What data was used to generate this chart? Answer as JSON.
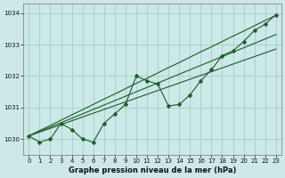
{
  "xlabel": "Graphe pression niveau de la mer (hPa)",
  "ylim": [
    1029.5,
    1034.3
  ],
  "xlim": [
    -0.5,
    23.5
  ],
  "yticks": [
    1030,
    1031,
    1032,
    1033,
    1034
  ],
  "xticks": [
    0,
    1,
    2,
    3,
    4,
    5,
    6,
    7,
    8,
    9,
    10,
    11,
    12,
    13,
    14,
    15,
    16,
    17,
    18,
    19,
    20,
    21,
    22,
    23
  ],
  "bg_color": "#cce8e8",
  "grid_color": "#99ccbb",
  "line_color": "#1a5c28",
  "series_main": [
    1030.1,
    1029.9,
    1030.0,
    1030.5,
    1030.3,
    1030.0,
    1029.9,
    1030.5,
    1030.8,
    1031.1,
    1032.0,
    1031.85,
    1031.75,
    1031.05,
    1031.1,
    1031.4,
    1031.85,
    1032.2,
    1032.65,
    1032.8,
    1033.1,
    1033.45,
    1033.65,
    1033.95
  ],
  "series_straight": [
    [
      1030.1,
      1030.27,
      1030.43,
      1030.6,
      1030.77,
      1030.93,
      1031.1,
      1031.27,
      1031.43,
      1031.6,
      1031.77,
      1031.93,
      1032.1,
      1032.27,
      1032.43,
      1032.6,
      1032.77,
      1032.93,
      1033.1,
      1033.27,
      1033.43,
      1033.6,
      1033.77,
      1033.93
    ],
    [
      1030.1,
      1030.24,
      1030.38,
      1030.52,
      1030.66,
      1030.8,
      1030.94,
      1031.08,
      1031.22,
      1031.36,
      1031.5,
      1031.64,
      1031.78,
      1031.92,
      1032.06,
      1032.2,
      1032.34,
      1032.48,
      1032.62,
      1032.76,
      1032.9,
      1033.04,
      1033.18,
      1033.32
    ],
    [
      1030.1,
      1030.22,
      1030.34,
      1030.46,
      1030.58,
      1030.7,
      1030.82,
      1030.94,
      1031.06,
      1031.18,
      1031.3,
      1031.42,
      1031.54,
      1031.66,
      1031.78,
      1031.9,
      1032.02,
      1032.14,
      1032.26,
      1032.38,
      1032.5,
      1032.62,
      1032.74,
      1032.86
    ]
  ],
  "marker": "D",
  "markersize": 2.5,
  "linewidth": 0.8,
  "straight_linewidth": 0.8
}
